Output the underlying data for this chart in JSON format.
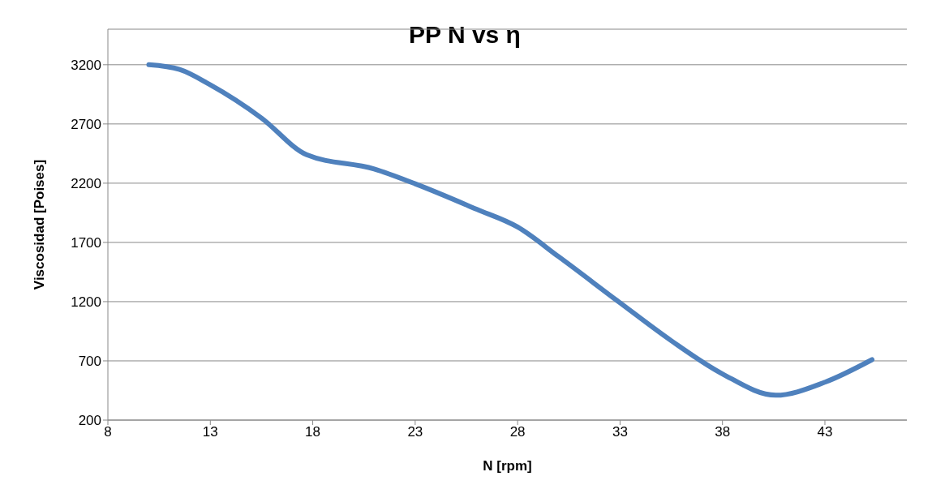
{
  "chart_data": {
    "type": "line",
    "title": "PP N vs η",
    "xlabel": "N [rpm]",
    "ylabel": "Viscosidad [Poises]",
    "x": [
      10,
      11.5,
      13,
      15.5,
      17.7,
      21,
      23,
      26,
      28,
      30,
      33,
      35.5,
      38,
      40.6,
      43,
      45.3
    ],
    "series": [
      {
        "color": "#4f81bd",
        "values": [
          3200,
          3160,
          3030,
          2750,
          2440,
          2320,
          2195,
          1980,
          1830,
          1580,
          1190,
          870,
          590,
          410,
          520,
          710
        ]
      }
    ],
    "xlim": [
      8,
      47
    ],
    "xticks": [
      8,
      13,
      18,
      23,
      28,
      33,
      38,
      43
    ],
    "ylim": [
      200,
      3500
    ],
    "yticks": [
      200,
      700,
      1200,
      1700,
      2200,
      2700,
      3200
    ],
    "grid": "y",
    "legend": false,
    "marker": "none",
    "line_style": "solid"
  }
}
